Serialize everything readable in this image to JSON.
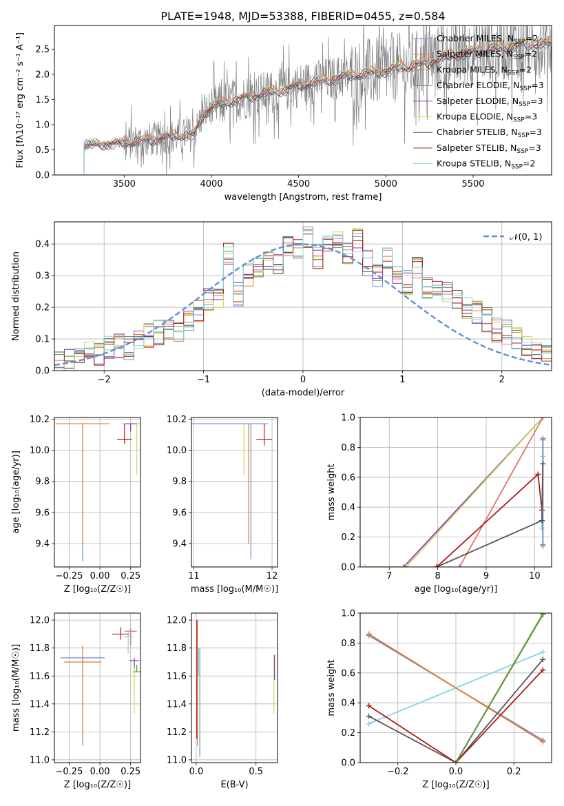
{
  "title": "PLATE=1948, MJD=53388, FIBERID=0455, z=0.584",
  "models": [
    {
      "name": "Chabrier MILES, N$_{SSP}$=2",
      "label_main": "Chabrier MILES, N",
      "label_sub": "SSP",
      "label_tail": "=2",
      "color": "#6b8fd8"
    },
    {
      "name": "Salpeter MILES, N$_{SSP}$=2",
      "label_main": "Salpeter MILES, N",
      "label_sub": "SSP",
      "label_tail": "=2",
      "color": "#e8706e"
    },
    {
      "name": "Kroupa MILES, N$_{SSP}$=2",
      "label_main": "Kroupa MILES, N",
      "label_sub": "SSP",
      "label_tail": "=2",
      "color": "#e47b2a"
    },
    {
      "name": "Chabrier ELODIE, N$_{SSP}$=3",
      "label_main": "Chabrier ELODIE, N",
      "label_sub": "SSP",
      "label_tail": "=3",
      "color": "#4f8f3c"
    },
    {
      "name": "Salpeter ELODIE, N$_{SSP}$=3",
      "label_main": "Salpeter ELODIE, N",
      "label_sub": "SSP",
      "label_tail": "=3",
      "color": "#8a36b8"
    },
    {
      "name": "Kroupa ELODIE, N$_{SSP}$=3",
      "label_main": "Kroupa ELODIE, N",
      "label_sub": "SSP",
      "label_tail": "=3",
      "color": "#c8dc5a"
    },
    {
      "name": "Chabrier STELIB, N$_{SSP}$=3",
      "label_main": "Chabrier STELIB, N",
      "label_sub": "SSP",
      "label_tail": "=3",
      "color": "#555555"
    },
    {
      "name": "Salpeter STELIB, N$_{SSP}$=3",
      "label_main": "Salpeter STELIB, N",
      "label_sub": "SSP",
      "label_tail": "=3",
      "color": "#b01a1a"
    },
    {
      "name": "Kroupa STELIB, N$_{SSP}$=2",
      "label_main": "Kroupa STELIB, N",
      "label_sub": "SSP",
      "label_tail": "=2",
      "color": "#7fd6e0"
    }
  ],
  "chart_data": [
    {
      "id": "spectrum",
      "type": "line",
      "xlabel": "wavelength [Angstrom, rest frame]",
      "ylabel": "Flux [f$_\\lambda$10$^{-17}$ erg cm$^{-2}$ s$^{-1}$ A$^{-1}$]",
      "ylabel_display": "Flux [fλ10⁻¹⁷ erg cm⁻² s⁻¹ A⁻¹]",
      "xlim": [
        3100,
        5950
      ],
      "ylim": [
        0,
        2.97
      ],
      "xticks": [
        3500,
        4000,
        4500,
        5000,
        5500
      ],
      "yticks": [
        0.0,
        0.5,
        1.0,
        1.5,
        2.0,
        2.5
      ],
      "xtick_labels": [
        "3500",
        "4000",
        "4500",
        "5000",
        "5500"
      ],
      "ytick_labels": [
        "0.0",
        "0.5",
        "1.0",
        "1.5",
        "2.0",
        "2.5"
      ],
      "data_color": "#808080",
      "data_start": 3270,
      "continuum": {
        "x": [
          3270,
          3300,
          3400,
          3500,
          3600,
          3700,
          3800,
          3900,
          3950,
          4000,
          4100,
          4200,
          4300,
          4400,
          4500,
          4600,
          4700,
          4800,
          4900,
          5000,
          5100,
          5200,
          5300,
          5400,
          5500,
          5600,
          5700,
          5800,
          5950
        ],
        "y": [
          0.58,
          0.6,
          0.62,
          0.64,
          0.68,
          0.72,
          0.78,
          0.8,
          1.2,
          1.35,
          1.45,
          1.55,
          1.62,
          1.68,
          1.78,
          1.85,
          1.92,
          1.98,
          2.02,
          2.08,
          2.15,
          2.2,
          2.3,
          2.4,
          2.45,
          2.5,
          2.55,
          2.6,
          2.62
        ]
      },
      "legend": "upper right"
    },
    {
      "id": "residuals",
      "type": "step-histogram",
      "xlabel": "(data-model)/error",
      "ylabel": "Normed distribution",
      "xlim": [
        -2.5,
        2.5
      ],
      "ylim": [
        0,
        0.47
      ],
      "xticks": [
        -2,
        -1,
        0,
        1,
        2
      ],
      "yticks": [
        0.0,
        0.1,
        0.2,
        0.3,
        0.4
      ],
      "xtick_labels": [
        "−2",
        "−1",
        "0",
        "1",
        "2"
      ],
      "ytick_labels": [
        "0.0",
        "0.1",
        "0.2",
        "0.3",
        "0.4"
      ],
      "reference_curve": {
        "name": "$\\mathcal{N}(0,1)$",
        "label": "𝒩(0, 1)",
        "mean": 0,
        "sigma": 1,
        "color": "#5b8fd8"
      },
      "bins": [
        -2.5,
        -2.4,
        -2.3,
        -2.2,
        -2.1,
        -2.0,
        -1.9,
        -1.8,
        -1.7,
        -1.6,
        -1.5,
        -1.4,
        -1.3,
        -1.2,
        -1.1,
        -1.0,
        -0.9,
        -0.8,
        -0.7,
        -0.6,
        -0.5,
        -0.4,
        -0.3,
        -0.2,
        -0.1,
        0.0,
        0.1,
        0.2,
        0.3,
        0.4,
        0.5,
        0.6,
        0.7,
        0.8,
        0.9,
        1.0,
        1.1,
        1.2,
        1.3,
        1.4,
        1.5,
        1.6,
        1.7,
        1.8,
        1.9,
        2.0,
        2.1,
        2.2,
        2.3,
        2.4,
        2.5
      ],
      "base_heights": [
        0.02,
        0.03,
        0.04,
        0.06,
        0.05,
        0.07,
        0.08,
        0.07,
        0.09,
        0.11,
        0.12,
        0.13,
        0.12,
        0.15,
        0.19,
        0.23,
        0.22,
        0.37,
        0.24,
        0.3,
        0.33,
        0.35,
        0.34,
        0.4,
        0.38,
        0.42,
        0.36,
        0.39,
        0.4,
        0.37,
        0.41,
        0.34,
        0.3,
        0.35,
        0.3,
        0.28,
        0.32,
        0.26,
        0.27,
        0.24,
        0.23,
        0.2,
        0.18,
        0.16,
        0.13,
        0.12,
        0.1,
        0.08,
        0.07,
        0.05
      ]
    },
    {
      "id": "age_vs_Z",
      "type": "errorbar",
      "xlabel": "Z [log$_{10}$(Z/Z$_\\odot$)]",
      "xlabel_display": "Z [log₁₀(Z/Z☉)]",
      "ylabel": "age  [log$_{10}$($age/yr$)]",
      "ylabel_display": "age  [log₁₀(age/yr)]",
      "xlim": [
        -0.37,
        0.33
      ],
      "ylim": [
        9.25,
        10.21
      ],
      "xticks": [
        -0.25,
        0.0,
        0.25
      ],
      "yticks": [
        9.4,
        9.6,
        9.8,
        10.0,
        10.2
      ],
      "xtick_labels": [
        "−0.25",
        "0.00",
        "0.25"
      ],
      "ytick_labels": [
        "9.4",
        "9.6",
        "9.8",
        "10.0",
        "10.2"
      ],
      "points": [
        {
          "x": -0.14,
          "y": 9.4,
          "xerr": 0.0,
          "yerr_low": 0.11,
          "yerr_high": 0.77,
          "model": 0
        },
        {
          "x": -0.14,
          "y": 10.17,
          "xerr": 0.22,
          "yerr_low": 0.77,
          "yerr_high": 0.0,
          "model": 2
        },
        {
          "x": 0.3,
          "y": 10.17,
          "xerr": 0.13,
          "yerr_low": 0.33,
          "yerr_high": 0.0,
          "model": 5
        },
        {
          "x": 0.2,
          "y": 10.07,
          "xerr": 0.06,
          "yerr_low": 0.03,
          "yerr_high": 0.1,
          "model": 7
        },
        {
          "x": 0.25,
          "y": 10.17,
          "xerr": 0.05,
          "yerr_low": 0.05,
          "yerr_high": 0.0,
          "model": 4
        }
      ]
    },
    {
      "id": "age_vs_mass",
      "type": "errorbar",
      "xlabel": "mass [log$_{10}$($M/M_\\odot$)]",
      "xlabel_display": "mass [log₁₀(M/M☉)]",
      "ylabel": "",
      "xlim": [
        10.97,
        12.07
      ],
      "ylim": [
        9.25,
        10.21
      ],
      "xticks": [
        11,
        12
      ],
      "yticks": [
        9.4,
        9.6,
        9.8,
        10.0,
        10.2
      ],
      "xtick_labels": [
        "11",
        "12"
      ],
      "ytick_labels": [
        "9.4",
        "9.6",
        "9.8",
        "10.0",
        "10.2"
      ],
      "points": [
        {
          "x": 11.73,
          "y": 9.3,
          "xerr": 0.0,
          "yerr_low": 0.0,
          "yerr_high": 0.87,
          "model": 0
        },
        {
          "x": 11.7,
          "y": 9.4,
          "xerr": 0.0,
          "yerr_low": 0.0,
          "yerr_high": 0.77,
          "model": 2
        },
        {
          "x": 11.64,
          "y": 9.84,
          "xerr": 0.0,
          "yerr_low": 0.0,
          "yerr_high": 0.33,
          "model": 5
        },
        {
          "x": 11.9,
          "y": 10.07,
          "xerr": 0.1,
          "yerr_low": 0.04,
          "yerr_high": 0.1,
          "model": 7
        },
        {
          "x": 11.4,
          "y": 10.17,
          "xerr": 0.55,
          "yerr_low": 0.0,
          "yerr_high": 0.0,
          "model": 0
        }
      ]
    },
    {
      "id": "massweight_vs_age",
      "type": "line",
      "xlabel": "age  [log$_{10}$($age/yr$)]",
      "xlabel_display": "age  [log₁₀(age/yr)]",
      "ylabel": "mass weight",
      "xlim": [
        6.4,
        10.35
      ],
      "ylim": [
        0,
        1.0
      ],
      "xticks": [
        7,
        8,
        9,
        10
      ],
      "yticks": [
        0.0,
        0.2,
        0.4,
        0.6,
        0.8,
        1.0
      ],
      "xtick_labels": [
        "7",
        "8",
        "9",
        "10"
      ],
      "ytick_labels": [
        "0.0",
        "0.2",
        "0.4",
        "0.6",
        "0.8",
        "1.0"
      ],
      "series": [
        {
          "model": 4,
          "x": [
            7.3,
            10.17
          ],
          "y": [
            0.0,
            1.0
          ]
        },
        {
          "model": 5,
          "x": [
            6.5,
            7.35,
            10.17
          ],
          "y": [
            0.0,
            0.0,
            1.0
          ]
        },
        {
          "model": 1,
          "x": [
            8.45,
            10.17
          ],
          "y": [
            0.0,
            1.0
          ]
        },
        {
          "model": 6,
          "x": [
            7.98,
            10.15
          ],
          "y": [
            0.0,
            0.31
          ]
        },
        {
          "model": 7,
          "x": [
            7.98,
            10.07,
            10.15
          ],
          "y": [
            0.0,
            0.62,
            0.38
          ]
        },
        {
          "model": 8,
          "x": [
            10.15,
            10.17
          ],
          "y": [
            0.26,
            0.74
          ]
        },
        {
          "model": 2,
          "x": [
            10.17,
            10.17
          ],
          "y": [
            0.14,
            0.86
          ]
        },
        {
          "model": 0,
          "x": [
            10.17,
            10.17
          ],
          "y": [
            0.15,
            0.85
          ]
        },
        {
          "model": 6,
          "x": [
            10.15,
            10.17
          ],
          "y": [
            0.31,
            0.69
          ]
        }
      ]
    },
    {
      "id": "mass_vs_Z",
      "type": "errorbar",
      "xlabel": "Z [log$_{10}$(Z/Z$_\\odot$)]",
      "xlabel_display": "Z [log₁₀(Z/Z☉)]",
      "ylabel": "mass [log$_{10}$($M/M_\\odot$)]",
      "ylabel_display": "mass [log₁₀(M/M☉)]",
      "xlim": [
        -0.37,
        0.33
      ],
      "ylim": [
        10.98,
        12.05
      ],
      "xticks": [
        -0.25,
        0.0,
        0.25
      ],
      "yticks": [
        11.0,
        11.2,
        11.4,
        11.6,
        11.8,
        12.0
      ],
      "xtick_labels": [
        "−0.25",
        "0.00",
        "0.25"
      ],
      "ytick_labels": [
        "11.0",
        "11.2",
        "11.4",
        "11.6",
        "11.8",
        "12.0"
      ],
      "points": [
        {
          "x": -0.14,
          "y": 11.73,
          "xerr": 0.18,
          "yerr_low": 0.63,
          "yerr_high": 0.0,
          "model": 0
        },
        {
          "x": -0.14,
          "y": 11.7,
          "xerr": 0.15,
          "yerr_low": 0.56,
          "yerr_high": 0.12,
          "model": 2
        },
        {
          "x": 0.28,
          "y": 11.6,
          "xerr": 0.02,
          "yerr_low": 0.27,
          "yerr_high": 0.12,
          "model": 5
        },
        {
          "x": 0.3,
          "y": 11.63,
          "xerr": 0.03,
          "yerr_low": 0.0,
          "yerr_high": 0.05,
          "model": 3
        },
        {
          "x": 0.17,
          "y": 11.9,
          "xerr": 0.07,
          "yerr_low": 0.04,
          "yerr_high": 0.05,
          "model": 7
        },
        {
          "x": 0.25,
          "y": 11.92,
          "xerr": 0.05,
          "yerr_low": 0.1,
          "yerr_high": 0.02,
          "model": 1
        },
        {
          "x": 0.23,
          "y": 11.88,
          "xerr": 0.04,
          "yerr_low": 0.12,
          "yerr_high": 0.05,
          "model": 8
        },
        {
          "x": 0.28,
          "y": 11.71,
          "xerr": 0.04,
          "yerr_low": 0.05,
          "yerr_high": 0.02,
          "model": 4
        }
      ]
    },
    {
      "id": "mass_vs_EBV",
      "type": "errorbar",
      "xlabel": "E(B-V)",
      "ylabel": "",
      "xlim": [
        -0.04,
        0.68
      ],
      "ylim": [
        10.98,
        12.05
      ],
      "xticks": [
        0.0,
        0.5
      ],
      "yticks": [
        11.0,
        11.2,
        11.4,
        11.6,
        11.8,
        12.0
      ],
      "xtick_labels": [
        "0.0",
        "0.5"
      ],
      "ytick_labels": [
        "11.0",
        "11.2",
        "11.4",
        "11.6",
        "11.8",
        "12.0"
      ],
      "points": [
        {
          "x": 0.01,
          "y": 11.45,
          "xerr": 0.0,
          "yerr_low": 0.35,
          "yerr_high": 0.55,
          "model": 2
        },
        {
          "x": 0.005,
          "y": 11.75,
          "xerr": 0.0,
          "yerr_low": 0.6,
          "yerr_high": 0.25,
          "model": 7
        },
        {
          "x": 0.03,
          "y": 11.4,
          "xerr": 0.0,
          "yerr_low": 0.38,
          "yerr_high": 0.4,
          "model": 0
        },
        {
          "x": 0.02,
          "y": 11.7,
          "xerr": 0.0,
          "yerr_low": 0.1,
          "yerr_high": 0.1,
          "model": 8
        },
        {
          "x": 0.65,
          "y": 11.55,
          "xerr": 0.0,
          "yerr_low": 0.22,
          "yerr_high": 0.2,
          "model": 5
        },
        {
          "x": 0.655,
          "y": 11.62,
          "xerr": 0.0,
          "yerr_low": 0.05,
          "yerr_high": 0.13,
          "model": 4
        }
      ]
    },
    {
      "id": "massweight_vs_Z",
      "type": "line",
      "xlabel": "Z [log$_{10}$(Z/Z$_\\odot$)]",
      "xlabel_display": "Z [log₁₀(Z/Z☉)]",
      "ylabel": "mass weight",
      "xlim": [
        -0.33,
        0.33
      ],
      "ylim": [
        0,
        1.0
      ],
      "xticks": [
        -0.2,
        0.0,
        0.2
      ],
      "yticks": [
        0.0,
        0.2,
        0.4,
        0.6,
        0.8,
        1.0
      ],
      "xtick_labels": [
        "−0.2",
        "0.0",
        "0.2"
      ],
      "ytick_labels": [
        "0.0",
        "0.2",
        "0.4",
        "0.6",
        "0.8",
        "1.0"
      ],
      "series": [
        {
          "model": 0,
          "x": [
            -0.3,
            0.3
          ],
          "y": [
            0.85,
            0.15
          ]
        },
        {
          "model": 2,
          "x": [
            -0.3,
            0.3
          ],
          "y": [
            0.86,
            0.14
          ]
        },
        {
          "model": 8,
          "x": [
            -0.3,
            0.3
          ],
          "y": [
            0.26,
            0.74
          ]
        },
        {
          "model": 6,
          "x": [
            -0.3,
            0.0,
            0.3
          ],
          "y": [
            0.31,
            0.0,
            0.69
          ]
        },
        {
          "model": 7,
          "x": [
            -0.3,
            0.0,
            0.3
          ],
          "y": [
            0.38,
            0.0,
            0.62
          ]
        },
        {
          "model": 4,
          "x": [
            0.0,
            0.3
          ],
          "y": [
            0.0,
            1.0
          ]
        },
        {
          "model": 5,
          "x": [
            0.0,
            0.3
          ],
          "y": [
            0.0,
            1.0
          ]
        },
        {
          "model": 3,
          "x": [
            0.0,
            0.3
          ],
          "y": [
            0.0,
            0.99
          ]
        }
      ]
    }
  ]
}
